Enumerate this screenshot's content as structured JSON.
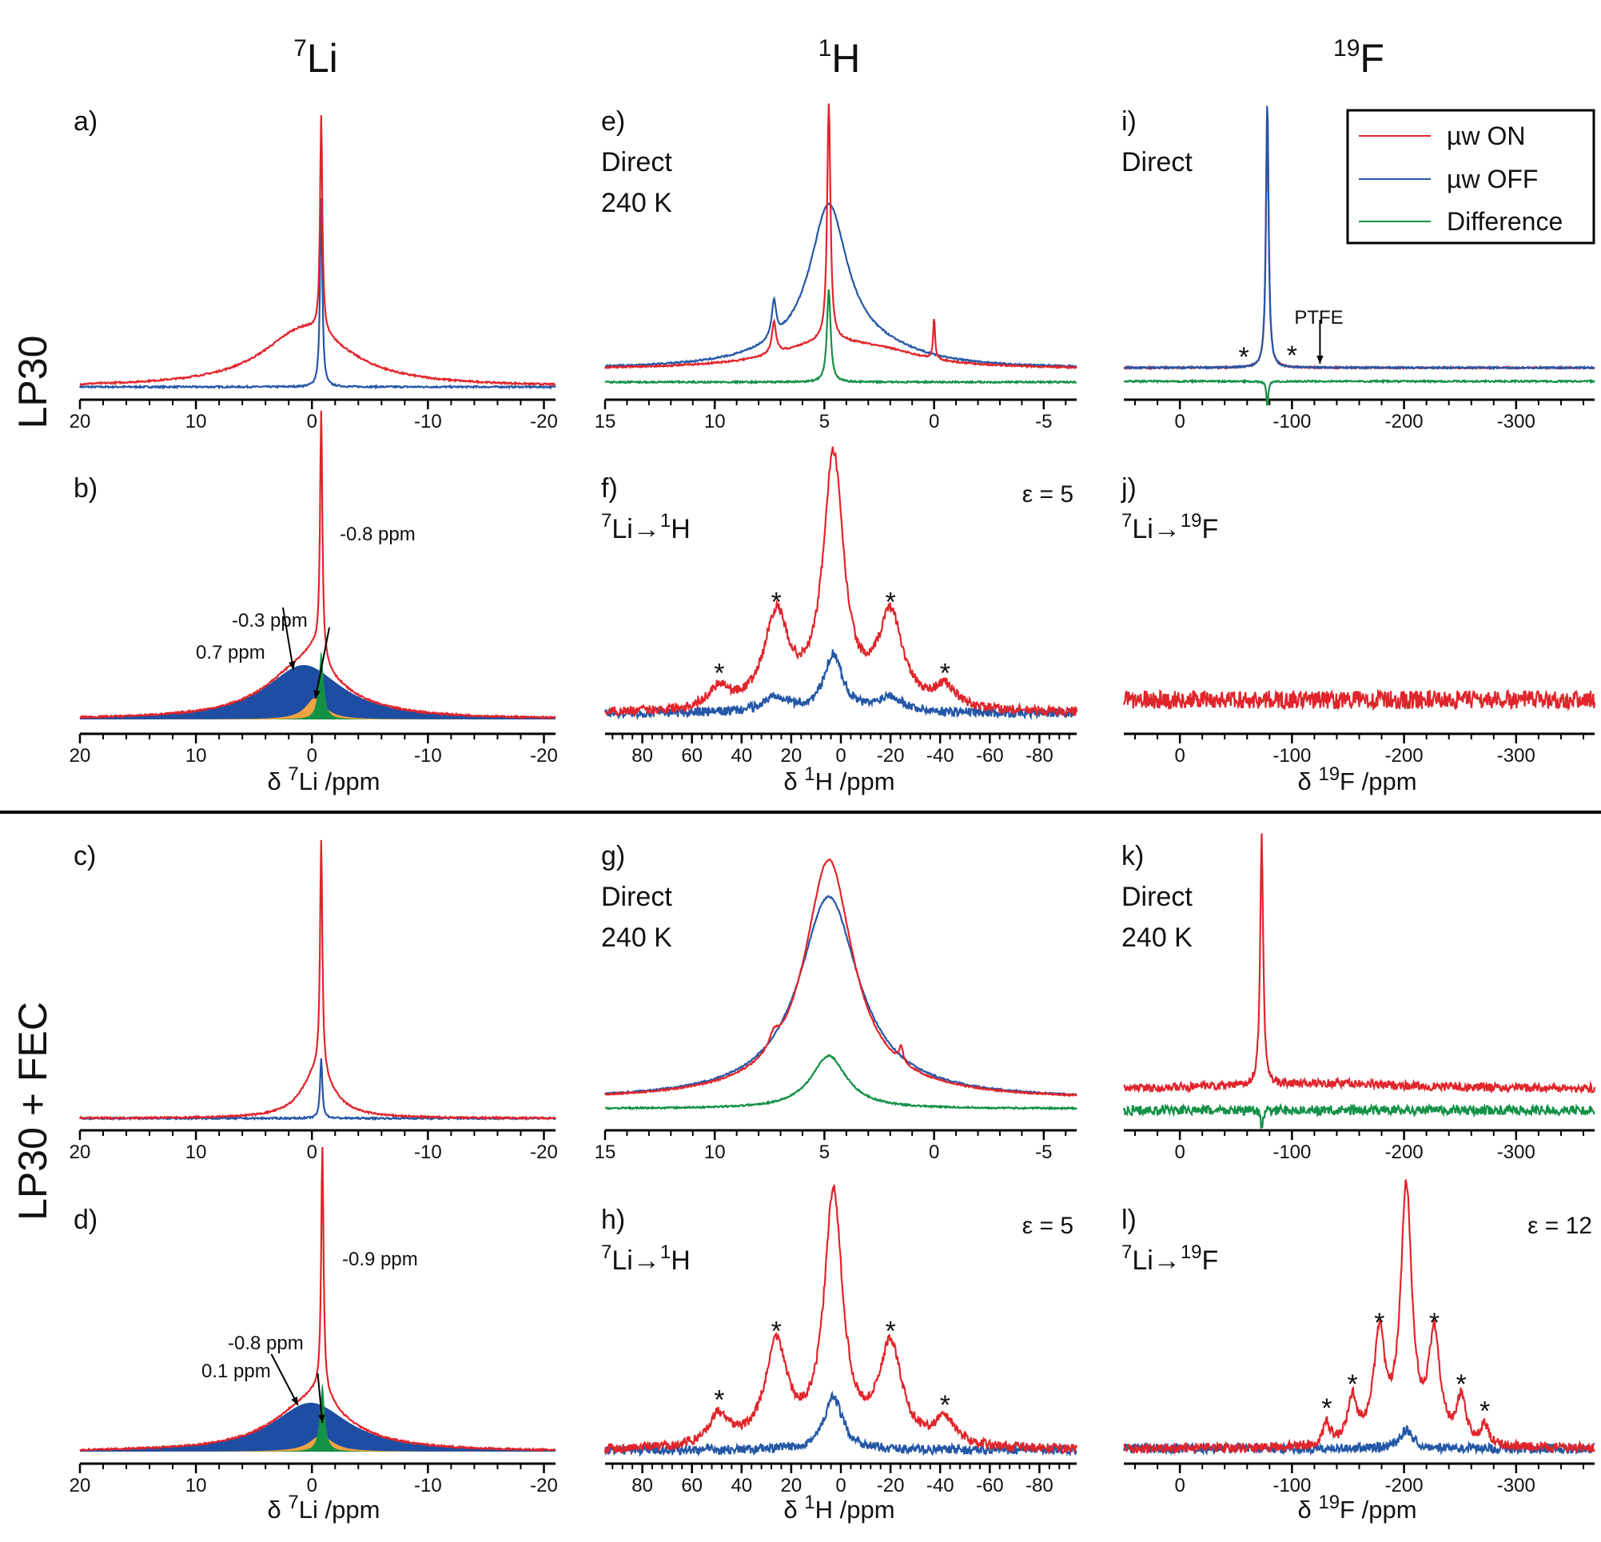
{
  "columns": [
    {
      "sup": "7",
      "base": "Li"
    },
    {
      "sup": "1",
      "base": "H"
    },
    {
      "sup": "19",
      "base": "F"
    }
  ],
  "rows": [
    "LP30",
    "LP30 + FEC"
  ],
  "legend": {
    "on": "µw ON",
    "off": "µw OFF",
    "diff": "Difference"
  },
  "colors": {
    "on": "#e0252b",
    "off": "#2457a6",
    "diff": "#139146",
    "fillBlue": "#1e4ea3",
    "fillOrange": "#f2a341",
    "fillGreen": "#139146"
  },
  "panels": {
    "a": {
      "letter": "a)"
    },
    "b": {
      "letter": "b)",
      "peaks": [
        "-0.8 ppm",
        "-0.3 ppm",
        "0.7 ppm"
      ],
      "xlabel": {
        "pre": "δ ",
        "sup": "7",
        "post": "Li /ppm"
      }
    },
    "c": {
      "letter": "c)"
    },
    "d": {
      "letter": "d)",
      "peaks": [
        "-0.9 ppm",
        "-0.8 ppm",
        "0.1 ppm"
      ],
      "xlabel": {
        "pre": "δ ",
        "sup": "7",
        "post": "Li /ppm"
      }
    },
    "e": {
      "letter": "e)",
      "lines": [
        "Direct",
        "240 K"
      ]
    },
    "f": {
      "letter": "f)",
      "cp": {
        "s1": "7",
        "b1": "Li→",
        "s2": "1",
        "b2": "H"
      },
      "eps": "ε = 5",
      "xlabel": {
        "pre": "δ ",
        "sup": "1",
        "post": "H /ppm"
      }
    },
    "g": {
      "letter": "g)",
      "lines": [
        "Direct",
        "240 K"
      ]
    },
    "h": {
      "letter": "h)",
      "cp": {
        "s1": "7",
        "b1": "Li→",
        "s2": "1",
        "b2": "H"
      },
      "eps": "ε = 5",
      "xlabel": {
        "pre": "δ ",
        "sup": "1",
        "post": "H /ppm"
      }
    },
    "i": {
      "letter": "i)",
      "lines": [
        "Direct"
      ],
      "ptfe": "PTFE"
    },
    "j": {
      "letter": "j)",
      "cp": {
        "s1": "7",
        "b1": "Li→",
        "s2": "19",
        "b2": "F"
      },
      "xlabel": {
        "pre": "δ ",
        "sup": "19",
        "post": "F /ppm"
      }
    },
    "k": {
      "letter": "k)",
      "lines": [
        "Direct",
        "240 K"
      ]
    },
    "l": {
      "letter": "l)",
      "cp": {
        "s1": "7",
        "b1": "Li→",
        "s2": "19",
        "b2": "F"
      },
      "eps": "ε = 12",
      "xlabel": {
        "pre": "δ ",
        "sup": "19",
        "post": "F /ppm"
      }
    }
  },
  "chart_data": [
    {
      "id": "a",
      "type": "line",
      "xlim": [
        20,
        -21
      ],
      "xticks": [
        20,
        10,
        0,
        -10,
        -20
      ],
      "series": [
        {
          "name": "µw ON",
          "peaks": [
            {
              "x": -0.8,
              "h": 0.8
            },
            {
              "x": 0.5,
              "h": 0.22
            }
          ]
        },
        {
          "name": "µw OFF",
          "peaks": [
            {
              "x": -0.8,
              "h": 0.7
            }
          ]
        }
      ]
    },
    {
      "id": "b",
      "type": "line",
      "xlim": [
        20,
        -21
      ],
      "xticks": [
        20,
        10,
        0,
        -10,
        -20
      ],
      "series": [
        {
          "name": "µw ON",
          "peaks": [
            {
              "x": -0.8,
              "h": 0.9
            },
            {
              "x": 0.7,
              "h": 0.2
            },
            {
              "x": -0.3,
              "h": 0.08
            }
          ]
        }
      ],
      "components_ppm": [
        -0.8,
        -0.3,
        0.7
      ]
    },
    {
      "id": "c",
      "type": "line",
      "xlim": [
        20,
        -21
      ],
      "xticks": [
        20,
        10,
        0,
        -10,
        -20
      ],
      "series": [
        {
          "name": "µw ON",
          "peaks": [
            {
              "x": -0.8,
              "h": 0.85
            },
            {
              "x": -0.5,
              "h": 0.18
            }
          ]
        },
        {
          "name": "µw OFF",
          "peaks": [
            {
              "x": -0.8,
              "h": 0.22
            }
          ]
        }
      ]
    },
    {
      "id": "d",
      "type": "line",
      "xlim": [
        20,
        -21
      ],
      "xticks": [
        20,
        10,
        0,
        -10,
        -20
      ],
      "series": [
        {
          "name": "µw ON",
          "peaks": [
            {
              "x": -0.9,
              "h": 0.9
            },
            {
              "x": 0.1,
              "h": 0.18
            },
            {
              "x": -0.8,
              "h": 0.06
            }
          ]
        }
      ],
      "components_ppm": [
        -0.9,
        -0.8,
        0.1
      ]
    },
    {
      "id": "e",
      "type": "line",
      "xlim": [
        15,
        -6.5
      ],
      "xticks": [
        15,
        10,
        5,
        0,
        -5
      ],
      "series": [
        {
          "name": "µw ON",
          "peaks": [
            {
              "x": 4.8,
              "h": 0.9
            },
            {
              "x": 7.3,
              "h": 0.12
            },
            {
              "x": 0.0,
              "h": 0.16
            }
          ]
        },
        {
          "name": "µw OFF",
          "peaks": [
            {
              "x": 4.8,
              "h": 0.52
            },
            {
              "x": 7.3,
              "h": 0.14
            }
          ]
        },
        {
          "name": "Difference",
          "peaks": [
            {
              "x": 4.8,
              "h": 0.35
            }
          ]
        }
      ]
    },
    {
      "id": "f",
      "type": "line",
      "xlim": [
        95,
        -95
      ],
      "xticks": [
        80,
        60,
        40,
        20,
        0,
        -20,
        -40,
        -60,
        -80
      ],
      "series": [
        {
          "name": "µw ON",
          "peaks": [
            {
              "x": 3,
              "h": 0.95
            },
            {
              "x": 26,
              "h": 0.35
            },
            {
              "x": -20,
              "h": 0.35
            },
            {
              "x": 49,
              "h": 0.08
            },
            {
              "x": -42,
              "h": 0.08
            }
          ]
        },
        {
          "name": "µw OFF",
          "peaks": [
            {
              "x": 3,
              "h": 0.22
            },
            {
              "x": 26,
              "h": 0.06
            },
            {
              "x": -20,
              "h": 0.06
            }
          ]
        }
      ]
    },
    {
      "id": "g",
      "type": "line",
      "xlim": [
        15,
        -6.5
      ],
      "xticks": [
        15,
        10,
        5,
        0,
        -5
      ],
      "series": [
        {
          "name": "µw ON",
          "peaks": [
            {
              "x": 4.8,
              "h": 0.85
            },
            {
              "x": 7.3,
              "h": 0.05
            },
            {
              "x": 1.5,
              "h": 0.06
            }
          ]
        },
        {
          "name": "µw OFF",
          "peaks": [
            {
              "x": 4.8,
              "h": 0.72
            }
          ]
        },
        {
          "name": "Difference",
          "peaks": [
            {
              "x": 4.8,
              "h": 0.2
            }
          ]
        }
      ]
    },
    {
      "id": "h",
      "type": "line",
      "xlim": [
        95,
        -95
      ],
      "xticks": [
        80,
        60,
        40,
        20,
        0,
        -20,
        -40,
        -60,
        -80
      ],
      "series": [
        {
          "name": "µw ON",
          "peaks": [
            {
              "x": 3,
              "h": 0.95
            },
            {
              "x": 26,
              "h": 0.38
            },
            {
              "x": -20,
              "h": 0.38
            },
            {
              "x": 49,
              "h": 0.12
            },
            {
              "x": -42,
              "h": 0.1
            }
          ]
        },
        {
          "name": "µw OFF",
          "peaks": [
            {
              "x": 3,
              "h": 0.2
            }
          ]
        }
      ]
    },
    {
      "id": "i",
      "type": "line",
      "xlim": [
        50,
        -370
      ],
      "xticks": [
        0,
        -100,
        -200,
        -300
      ],
      "series": [
        {
          "name": "µw ON",
          "peaks": [
            {
              "x": -78,
              "h": 0.95
            }
          ]
        },
        {
          "name": "µw OFF",
          "peaks": [
            {
              "x": -78,
              "h": 0.97
            }
          ]
        },
        {
          "name": "Difference",
          "peaks": [
            {
              "x": -78,
              "h": -0.09
            }
          ]
        }
      ]
    },
    {
      "id": "j",
      "type": "line",
      "xlim": [
        50,
        -370
      ],
      "xticks": [
        0,
        -100,
        -200,
        -300
      ],
      "series": [
        {
          "name": "µw ON",
          "peaks": []
        }
      ]
    },
    {
      "id": "k",
      "type": "line",
      "xlim": [
        50,
        -370
      ],
      "xticks": [
        0,
        -100,
        -200,
        -300
      ],
      "series": [
        {
          "name": "µw ON",
          "peaks": [
            {
              "x": -73,
              "h": 0.9
            }
          ]
        },
        {
          "name": "Difference",
          "peaks": [
            {
              "x": -73,
              "h": -0.06
            }
          ]
        }
      ]
    },
    {
      "id": "l",
      "type": "line",
      "xlim": [
        50,
        -370
      ],
      "xticks": [
        0,
        -100,
        -200,
        -300
      ],
      "series": [
        {
          "name": "µw ON",
          "peaks": [
            {
              "x": -202,
              "h": 0.95
            },
            {
              "x": -178,
              "h": 0.4
            },
            {
              "x": -227,
              "h": 0.4
            },
            {
              "x": -154,
              "h": 0.17
            },
            {
              "x": -251,
              "h": 0.17
            },
            {
              "x": -131,
              "h": 0.08
            },
            {
              "x": -272,
              "h": 0.07
            }
          ]
        },
        {
          "name": "µw OFF",
          "peaks": [
            {
              "x": -202,
              "h": 0.07
            }
          ]
        }
      ]
    }
  ]
}
